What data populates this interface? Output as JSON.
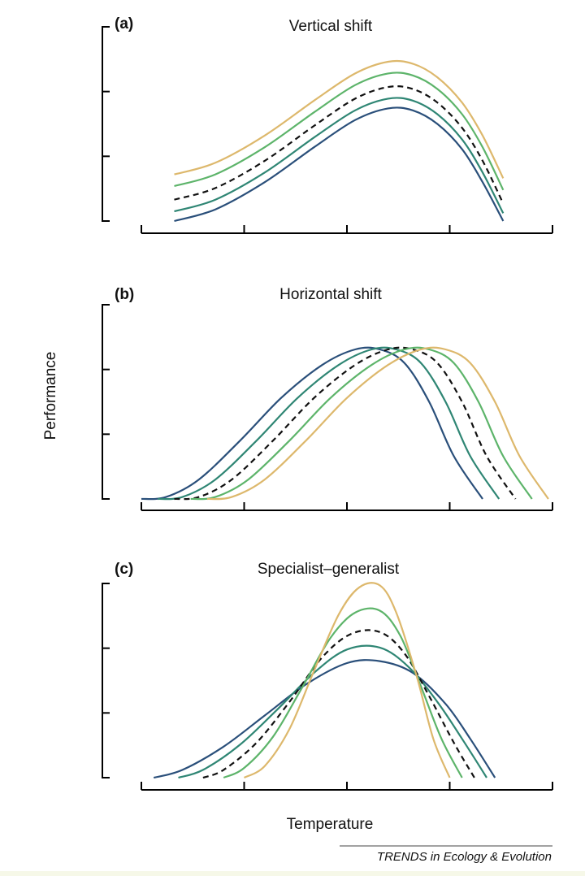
{
  "figure": {
    "ylabel": "Performance",
    "xlabel": "Temperature",
    "credit": "TRENDS in Ecology & Evolution",
    "colors": {
      "darkblue": "#2a4f7a",
      "teal": "#2f8674",
      "green": "#5db46a",
      "tan": "#ddb86c",
      "dashed": "#111111"
    }
  },
  "chart_data": [
    {
      "type": "line",
      "letter": "(a)",
      "title": "Vertical shift",
      "x_ticks": 5,
      "y_ticks": 4,
      "series": [
        {
          "color": "darkblue",
          "dashed": false,
          "points": [
            [
              0.08,
              0.0
            ],
            [
              0.18,
              0.06
            ],
            [
              0.3,
              0.2
            ],
            [
              0.42,
              0.38
            ],
            [
              0.52,
              0.52
            ],
            [
              0.6,
              0.58
            ],
            [
              0.66,
              0.57
            ],
            [
              0.72,
              0.5
            ],
            [
              0.78,
              0.37
            ],
            [
              0.83,
              0.2
            ],
            [
              0.88,
              0.0
            ]
          ]
        },
        {
          "color": "teal",
          "dashed": false,
          "points": [
            [
              0.08,
              0.05
            ],
            [
              0.18,
              0.11
            ],
            [
              0.3,
              0.25
            ],
            [
              0.42,
              0.43
            ],
            [
              0.52,
              0.57
            ],
            [
              0.6,
              0.63
            ],
            [
              0.66,
              0.62
            ],
            [
              0.72,
              0.55
            ],
            [
              0.78,
              0.42
            ],
            [
              0.83,
              0.25
            ],
            [
              0.88,
              0.04
            ]
          ]
        },
        {
          "color": "dashed",
          "dashed": true,
          "points": [
            [
              0.08,
              0.11
            ],
            [
              0.18,
              0.17
            ],
            [
              0.3,
              0.31
            ],
            [
              0.42,
              0.49
            ],
            [
              0.52,
              0.63
            ],
            [
              0.6,
              0.69
            ],
            [
              0.66,
              0.68
            ],
            [
              0.72,
              0.61
            ],
            [
              0.78,
              0.48
            ],
            [
              0.83,
              0.31
            ],
            [
              0.88,
              0.09
            ]
          ]
        },
        {
          "color": "green",
          "dashed": false,
          "points": [
            [
              0.08,
              0.18
            ],
            [
              0.18,
              0.24
            ],
            [
              0.3,
              0.38
            ],
            [
              0.42,
              0.56
            ],
            [
              0.52,
              0.7
            ],
            [
              0.6,
              0.76
            ],
            [
              0.66,
              0.75
            ],
            [
              0.72,
              0.68
            ],
            [
              0.78,
              0.55
            ],
            [
              0.83,
              0.38
            ],
            [
              0.88,
              0.16
            ]
          ]
        },
        {
          "color": "tan",
          "dashed": false,
          "points": [
            [
              0.08,
              0.24
            ],
            [
              0.18,
              0.3
            ],
            [
              0.3,
              0.44
            ],
            [
              0.42,
              0.62
            ],
            [
              0.52,
              0.76
            ],
            [
              0.6,
              0.82
            ],
            [
              0.66,
              0.81
            ],
            [
              0.72,
              0.74
            ],
            [
              0.78,
              0.61
            ],
            [
              0.83,
              0.44
            ],
            [
              0.88,
              0.22
            ]
          ]
        }
      ]
    },
    {
      "type": "line",
      "letter": "(b)",
      "title": "Horizontal shift",
      "x_ticks": 5,
      "y_ticks": 4,
      "series": [
        {
          "color": "darkblue",
          "dashed": false,
          "points": [
            [
              0.0,
              0.0
            ],
            [
              0.06,
              0.01
            ],
            [
              0.14,
              0.1
            ],
            [
              0.24,
              0.3
            ],
            [
              0.34,
              0.52
            ],
            [
              0.44,
              0.69
            ],
            [
              0.52,
              0.77
            ],
            [
              0.58,
              0.77
            ],
            [
              0.64,
              0.7
            ],
            [
              0.7,
              0.5
            ],
            [
              0.76,
              0.22
            ],
            [
              0.83,
              0.0
            ]
          ]
        },
        {
          "color": "teal",
          "dashed": false,
          "points": [
            [
              0.04,
              0.0
            ],
            [
              0.1,
              0.01
            ],
            [
              0.18,
              0.1
            ],
            [
              0.28,
              0.3
            ],
            [
              0.38,
              0.52
            ],
            [
              0.48,
              0.69
            ],
            [
              0.56,
              0.77
            ],
            [
              0.62,
              0.77
            ],
            [
              0.68,
              0.7
            ],
            [
              0.74,
              0.5
            ],
            [
              0.8,
              0.22
            ],
            [
              0.87,
              0.0
            ]
          ]
        },
        {
          "color": "dashed",
          "dashed": true,
          "points": [
            [
              0.08,
              0.0
            ],
            [
              0.14,
              0.01
            ],
            [
              0.22,
              0.1
            ],
            [
              0.32,
              0.3
            ],
            [
              0.42,
              0.52
            ],
            [
              0.52,
              0.69
            ],
            [
              0.6,
              0.77
            ],
            [
              0.66,
              0.77
            ],
            [
              0.72,
              0.7
            ],
            [
              0.78,
              0.5
            ],
            [
              0.84,
              0.22
            ],
            [
              0.91,
              0.0
            ]
          ]
        },
        {
          "color": "green",
          "dashed": false,
          "points": [
            [
              0.12,
              0.0
            ],
            [
              0.18,
              0.01
            ],
            [
              0.26,
              0.1
            ],
            [
              0.36,
              0.3
            ],
            [
              0.46,
              0.52
            ],
            [
              0.56,
              0.69
            ],
            [
              0.64,
              0.77
            ],
            [
              0.7,
              0.77
            ],
            [
              0.76,
              0.7
            ],
            [
              0.82,
              0.5
            ],
            [
              0.88,
              0.22
            ],
            [
              0.95,
              0.0
            ]
          ]
        },
        {
          "color": "tan",
          "dashed": false,
          "points": [
            [
              0.16,
              0.0
            ],
            [
              0.22,
              0.01
            ],
            [
              0.3,
              0.1
            ],
            [
              0.4,
              0.3
            ],
            [
              0.5,
              0.52
            ],
            [
              0.6,
              0.69
            ],
            [
              0.68,
              0.77
            ],
            [
              0.74,
              0.77
            ],
            [
              0.8,
              0.7
            ],
            [
              0.86,
              0.5
            ],
            [
              0.92,
              0.22
            ],
            [
              0.99,
              0.0
            ]
          ]
        }
      ]
    },
    {
      "type": "line",
      "letter": "(c)",
      "title": "Specialist–generalist",
      "x_ticks": 5,
      "y_ticks": 4,
      "series": [
        {
          "color": "darkblue",
          "dashed": false,
          "points": [
            [
              0.03,
              0.0
            ],
            [
              0.1,
              0.04
            ],
            [
              0.2,
              0.16
            ],
            [
              0.3,
              0.32
            ],
            [
              0.4,
              0.48
            ],
            [
              0.5,
              0.59
            ],
            [
              0.58,
              0.6
            ],
            [
              0.66,
              0.54
            ],
            [
              0.74,
              0.38
            ],
            [
              0.8,
              0.2
            ],
            [
              0.86,
              0.0
            ]
          ]
        },
        {
          "color": "teal",
          "dashed": false,
          "points": [
            [
              0.09,
              0.0
            ],
            [
              0.15,
              0.04
            ],
            [
              0.24,
              0.17
            ],
            [
              0.33,
              0.35
            ],
            [
              0.42,
              0.54
            ],
            [
              0.5,
              0.66
            ],
            [
              0.58,
              0.67
            ],
            [
              0.65,
              0.57
            ],
            [
              0.72,
              0.39
            ],
            [
              0.78,
              0.2
            ],
            [
              0.84,
              0.0
            ]
          ]
        },
        {
          "color": "dashed",
          "dashed": true,
          "points": [
            [
              0.15,
              0.0
            ],
            [
              0.2,
              0.04
            ],
            [
              0.28,
              0.18
            ],
            [
              0.36,
              0.39
            ],
            [
              0.44,
              0.62
            ],
            [
              0.51,
              0.74
            ],
            [
              0.58,
              0.75
            ],
            [
              0.64,
              0.64
            ],
            [
              0.7,
              0.42
            ],
            [
              0.76,
              0.18
            ],
            [
              0.81,
              0.0
            ]
          ]
        },
        {
          "color": "green",
          "dashed": false,
          "points": [
            [
              0.2,
              0.0
            ],
            [
              0.25,
              0.05
            ],
            [
              0.32,
              0.21
            ],
            [
              0.39,
              0.46
            ],
            [
              0.46,
              0.72
            ],
            [
              0.52,
              0.85
            ],
            [
              0.58,
              0.86
            ],
            [
              0.63,
              0.73
            ],
            [
              0.68,
              0.47
            ],
            [
              0.73,
              0.2
            ],
            [
              0.78,
              0.0
            ]
          ]
        },
        {
          "color": "tan",
          "dashed": false,
          "points": [
            [
              0.25,
              0.0
            ],
            [
              0.3,
              0.06
            ],
            [
              0.36,
              0.25
            ],
            [
              0.42,
              0.55
            ],
            [
              0.48,
              0.84
            ],
            [
              0.53,
              0.98
            ],
            [
              0.58,
              0.99
            ],
            [
              0.62,
              0.85
            ],
            [
              0.67,
              0.52
            ],
            [
              0.71,
              0.2
            ],
            [
              0.75,
              0.0
            ]
          ]
        }
      ]
    }
  ]
}
